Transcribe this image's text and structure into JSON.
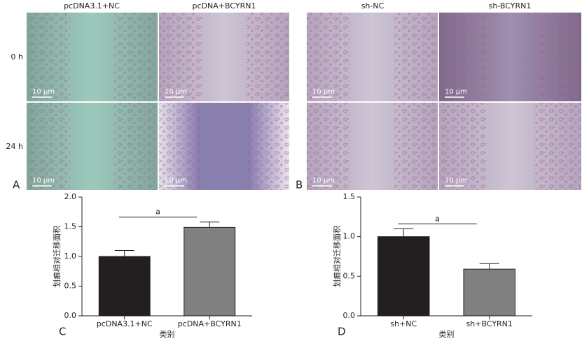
{
  "figure": {
    "panels": [
      {
        "letter": "A",
        "columns": [
          "pcDNA3.1+NC",
          "pcDNA+BCYRN1"
        ],
        "rows": [
          "0 h",
          "24 h"
        ],
        "scale_bar": "10 μm"
      },
      {
        "letter": "B",
        "columns": [
          "sh-NC",
          "sh-BCYRN1"
        ],
        "scale_bar": "10 μm"
      }
    ]
  },
  "chart_data": [
    {
      "type": "bar",
      "letter": "C",
      "categories": [
        "pcDNA3.1+NC",
        "pcDNA+BCYRN1"
      ],
      "values": [
        1.0,
        1.49
      ],
      "errors": [
        0.1,
        0.09
      ],
      "colors": [
        "#231f20",
        "#808080"
      ],
      "ylim": [
        0,
        2.0
      ],
      "yticks": [
        {
          "value": 0,
          "label": "0.0"
        },
        {
          "value": 0.5,
          "label": "0.5"
        },
        {
          "value": 1.0,
          "label": "1.0"
        },
        {
          "value": 1.5,
          "label": "1.5"
        },
        {
          "value": 2.0,
          "label": "2.0"
        }
      ],
      "y_label": "划痕相对迁移面积",
      "x_label": "类别",
      "annotation": "a"
    },
    {
      "type": "bar",
      "letter": "D",
      "categories": [
        "sh+NC",
        "sh+BCYRN1"
      ],
      "values": [
        1.0,
        0.59
      ],
      "errors": [
        0.1,
        0.07
      ],
      "colors": [
        "#231f20",
        "#808080"
      ],
      "ylim": [
        0,
        1.5
      ],
      "yticks": [
        {
          "value": 0,
          "label": "0.0"
        },
        {
          "value": 0.5,
          "label": "0.5"
        },
        {
          "value": 1.0,
          "label": "1.0"
        },
        {
          "value": 1.5,
          "label": "1.5"
        }
      ],
      "y_label": "划痕相对迁移面积",
      "x_label": "类别",
      "annotation": "a"
    }
  ]
}
